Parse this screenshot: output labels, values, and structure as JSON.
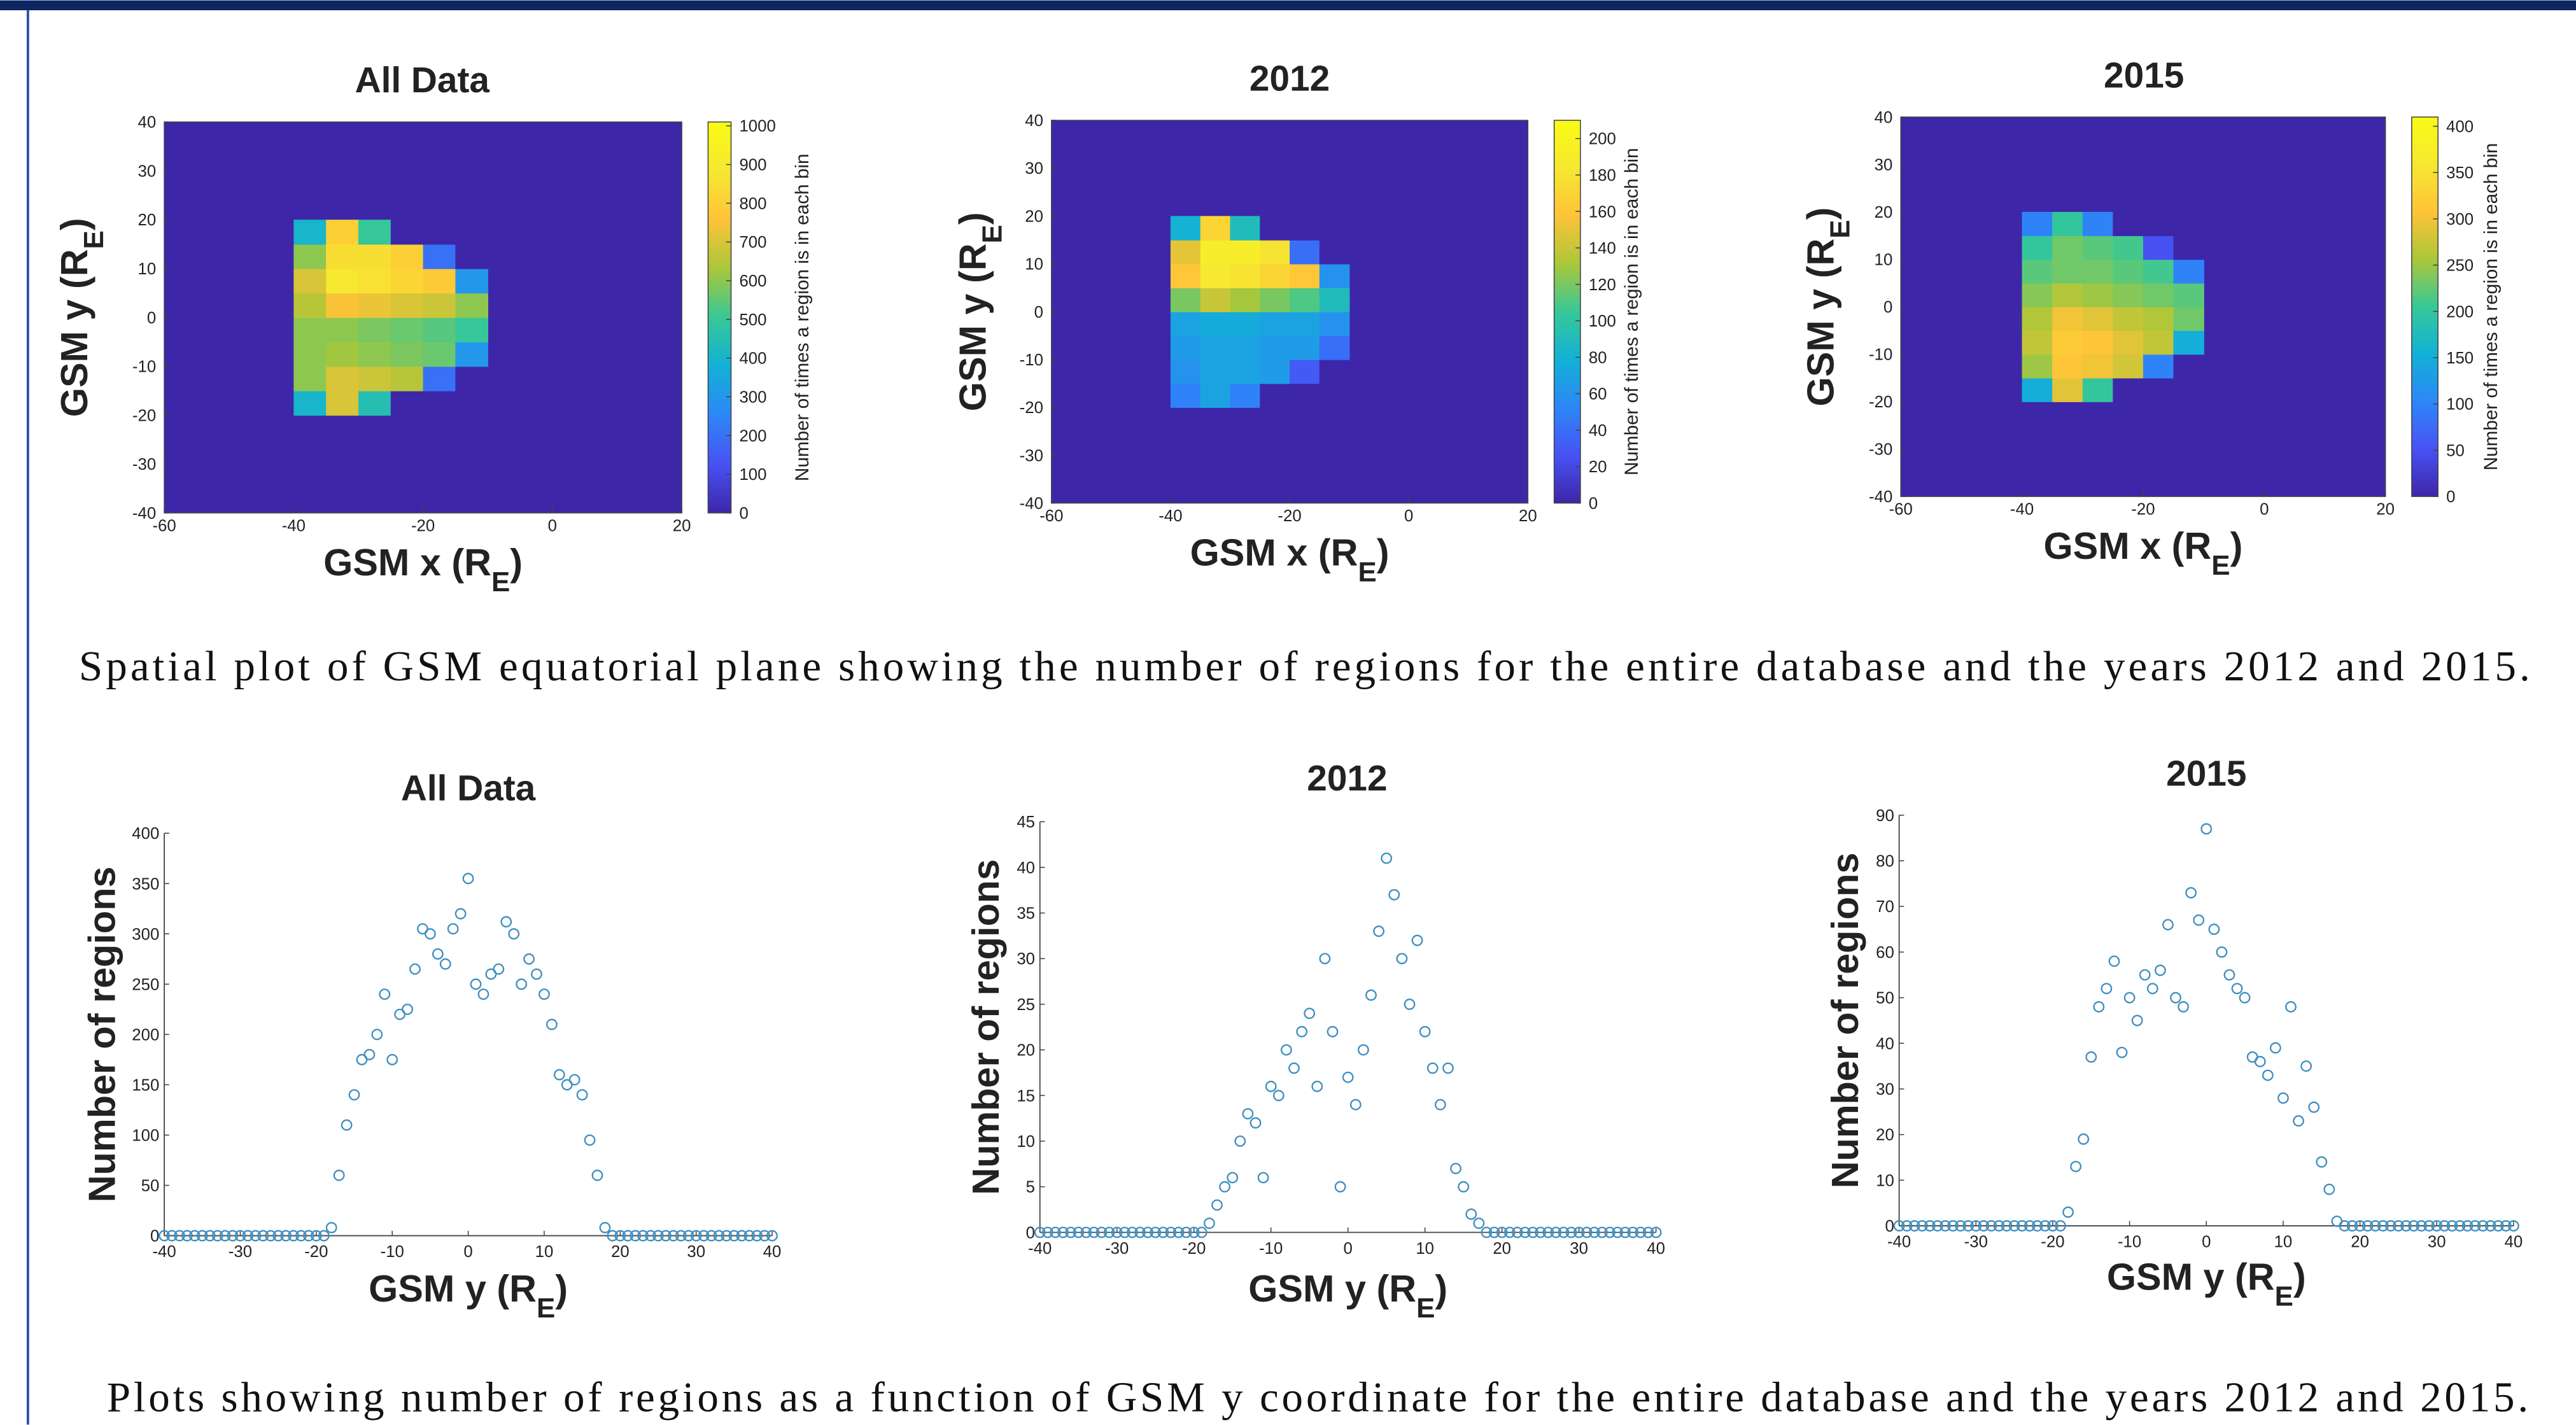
{
  "captions": [
    "Spatial plot of GSM equatorial plane showing the number of regions for the entire database  and the years 2012 and 2015.",
    "Plots showing number of regions as a function of GSM y coordinate for the entire database and the years 2012 and 2015."
  ],
  "colormap": [
    "#3e26a8",
    "#4752f4",
    "#2d87f7",
    "#12b1d6",
    "#37c897",
    "#abc739",
    "#fec338",
    "#f6e830",
    "#f9fb15"
  ],
  "chart_data": [
    {
      "type": "heatmap",
      "title": "All Data",
      "xlabel": [
        "GSM x (R",
        "E",
        ")"
      ],
      "ylabel": [
        "GSM y (R",
        "E",
        ")"
      ],
      "colorbar_label": "Number of times a region is in each bin",
      "xlim": [
        -60,
        20
      ],
      "ylim": [
        -40,
        40
      ],
      "xticks": [
        -60,
        -40,
        -20,
        0,
        20
      ],
      "yticks": [
        -40,
        -30,
        -20,
        -10,
        0,
        10,
        20,
        30,
        40
      ],
      "clim": [
        0,
        1010
      ],
      "cticks": [
        0,
        100,
        200,
        300,
        400,
        500,
        600,
        700,
        800,
        900,
        1000
      ],
      "x_bins": [
        -40,
        -35,
        -30,
        -25,
        -20,
        -15,
        -10
      ],
      "y_bins": [
        -20,
        -15,
        -10,
        -5,
        0,
        5,
        10,
        15,
        20
      ],
      "z": [
        [
          400,
          700,
          450,
          0,
          0,
          0
        ],
        [
          600,
          700,
          680,
          650,
          200,
          0
        ],
        [
          600,
          620,
          600,
          580,
          560,
          300
        ],
        [
          600,
          600,
          580,
          560,
          540,
          500
        ],
        [
          650,
          750,
          730,
          700,
          680,
          600
        ],
        [
          700,
          880,
          860,
          820,
          780,
          300
        ],
        [
          600,
          850,
          850,
          800,
          200,
          0
        ],
        [
          400,
          800,
          500,
          0,
          0,
          0
        ]
      ]
    },
    {
      "type": "heatmap",
      "title": "2012",
      "xlabel": [
        "GSM x (R",
        "E",
        ")"
      ],
      "ylabel": [
        "GSM y (R",
        "E",
        ")"
      ],
      "colorbar_label": "Number of times a region is in each bin",
      "xlim": [
        -60,
        20
      ],
      "ylim": [
        -40,
        40
      ],
      "xticks": [
        -60,
        -40,
        -20,
        0,
        20
      ],
      "yticks": [
        -40,
        -30,
        -20,
        -10,
        0,
        10,
        20,
        30,
        40
      ],
      "clim": [
        0,
        210
      ],
      "cticks": [
        0,
        20,
        40,
        60,
        80,
        100,
        120,
        140,
        160,
        180,
        200
      ],
      "x_bins": [
        -40,
        -35,
        -30,
        -25,
        -20,
        -15,
        -10
      ],
      "y_bins": [
        -20,
        -15,
        -10,
        -5,
        0,
        5,
        10,
        15,
        20
      ],
      "z": [
        [
          50,
          70,
          50,
          0,
          0,
          0
        ],
        [
          60,
          70,
          70,
          65,
          30,
          0
        ],
        [
          65,
          70,
          70,
          65,
          65,
          40
        ],
        [
          70,
          75,
          75,
          70,
          70,
          60
        ],
        [
          120,
          140,
          130,
          120,
          110,
          90
        ],
        [
          160,
          185,
          180,
          170,
          160,
          60
        ],
        [
          150,
          190,
          190,
          180,
          40,
          0
        ],
        [
          80,
          170,
          90,
          0,
          0,
          0
        ]
      ]
    },
    {
      "type": "heatmap",
      "title": "2015",
      "xlabel": [
        "GSM x (R",
        "E",
        ")"
      ],
      "ylabel": [
        "GSM y (R",
        "E",
        ")"
      ],
      "colorbar_label": "Number of times a region is in each bin",
      "xlim": [
        -60,
        20
      ],
      "ylim": [
        -40,
        40
      ],
      "xticks": [
        -60,
        -40,
        -20,
        0,
        20
      ],
      "yticks": [
        -40,
        -30,
        -20,
        -10,
        0,
        10,
        20,
        30,
        40
      ],
      "clim": [
        0,
        410
      ],
      "cticks": [
        0,
        50,
        100,
        150,
        200,
        250,
        300,
        350,
        400
      ],
      "x_bins": [
        -40,
        -35,
        -30,
        -25,
        -20,
        -15,
        -10
      ],
      "y_bins": [
        -20,
        -15,
        -10,
        -5,
        0,
        5,
        10,
        15,
        20
      ],
      "z": [
        [
          150,
          290,
          200,
          0,
          0,
          0
        ],
        [
          250,
          310,
          300,
          280,
          100,
          0
        ],
        [
          270,
          320,
          310,
          290,
          270,
          150
        ],
        [
          260,
          300,
          290,
          270,
          260,
          230
        ],
        [
          240,
          260,
          250,
          240,
          230,
          220
        ],
        [
          220,
          230,
          230,
          220,
          210,
          100
        ],
        [
          200,
          230,
          220,
          210,
          50,
          0
        ],
        [
          100,
          200,
          100,
          0,
          0,
          0
        ]
      ]
    },
    {
      "type": "scatter",
      "title": "All Data",
      "xlabel": [
        "GSM y (R",
        "E",
        ")"
      ],
      "ylabel": "Number of regions",
      "color": "#3f8fbf",
      "xlim": [
        -40,
        40
      ],
      "ylim": [
        0,
        400
      ],
      "xticks": [
        -40,
        -30,
        -20,
        -10,
        0,
        10,
        20,
        30,
        40
      ],
      "yticks": [
        0,
        50,
        100,
        150,
        200,
        250,
        300,
        350,
        400
      ],
      "x": [
        -40,
        -39,
        -38,
        -37,
        -36,
        -35,
        -34,
        -33,
        -32,
        -31,
        -30,
        -29,
        -28,
        -27,
        -26,
        -25,
        -24,
        -23,
        -22,
        -21,
        -20,
        -19,
        -18,
        -17,
        -16,
        -15,
        -14,
        -13,
        -12,
        -11,
        -10,
        -9,
        -8,
        -7,
        -6,
        -5,
        -4,
        -3,
        -2,
        -1,
        0,
        1,
        2,
        3,
        4,
        5,
        6,
        7,
        8,
        9,
        10,
        11,
        12,
        13,
        14,
        15,
        16,
        17,
        18,
        19,
        20,
        21,
        22,
        23,
        24,
        25,
        26,
        27,
        28,
        29,
        30,
        31,
        32,
        33,
        34,
        35,
        36,
        37,
        38,
        39,
        40
      ],
      "values": [
        0,
        0,
        0,
        0,
        0,
        0,
        0,
        0,
        0,
        0,
        0,
        0,
        0,
        0,
        0,
        0,
        0,
        0,
        0,
        0,
        0,
        0,
        8,
        60,
        110,
        140,
        175,
        180,
        200,
        240,
        175,
        220,
        225,
        265,
        305,
        300,
        280,
        270,
        305,
        320,
        355,
        250,
        240,
        260,
        265,
        312,
        300,
        250,
        275,
        260,
        240,
        210,
        160,
        150,
        155,
        140,
        95,
        60,
        8,
        0,
        0,
        0,
        0,
        0,
        0,
        0,
        0,
        0,
        0,
        0,
        0,
        0,
        0,
        0,
        0,
        0,
        0,
        0,
        0,
        0,
        0
      ]
    },
    {
      "type": "scatter",
      "title": "2012",
      "xlabel": [
        "GSM y (R",
        "E",
        ")"
      ],
      "ylabel": "Number of regions",
      "color": "#3f8fbf",
      "xlim": [
        -40,
        40
      ],
      "ylim": [
        0,
        45
      ],
      "xticks": [
        -40,
        -30,
        -20,
        -10,
        0,
        10,
        20,
        30,
        40
      ],
      "yticks": [
        0,
        5,
        10,
        15,
        20,
        25,
        30,
        35,
        40,
        45
      ],
      "x": [
        -40,
        -39,
        -38,
        -37,
        -36,
        -35,
        -34,
        -33,
        -32,
        -31,
        -30,
        -29,
        -28,
        -27,
        -26,
        -25,
        -24,
        -23,
        -22,
        -21,
        -20,
        -19,
        -18,
        -17,
        -16,
        -15,
        -14,
        -13,
        -12,
        -11,
        -10,
        -9,
        -8,
        -7,
        -6,
        -5,
        -4,
        -3,
        -2,
        -1,
        0,
        1,
        2,
        3,
        4,
        5,
        6,
        7,
        8,
        9,
        10,
        11,
        12,
        13,
        14,
        15,
        16,
        17,
        18,
        19,
        20,
        21,
        22,
        23,
        24,
        25,
        26,
        27,
        28,
        29,
        30,
        31,
        32,
        33,
        34,
        35,
        36,
        37,
        38,
        39,
        40
      ],
      "values": [
        0,
        0,
        0,
        0,
        0,
        0,
        0,
        0,
        0,
        0,
        0,
        0,
        0,
        0,
        0,
        0,
        0,
        0,
        0,
        0,
        0,
        0,
        1,
        3,
        5,
        6,
        10,
        13,
        12,
        6,
        16,
        15,
        20,
        18,
        22,
        24,
        16,
        30,
        22,
        5,
        17,
        14,
        20,
        26,
        33,
        41,
        37,
        30,
        25,
        32,
        22,
        18,
        14,
        18,
        7,
        5,
        2,
        1,
        0,
        0,
        0,
        0,
        0,
        0,
        0,
        0,
        0,
        0,
        0,
        0,
        0,
        0,
        0,
        0,
        0,
        0,
        0,
        0,
        0,
        0,
        0
      ]
    },
    {
      "type": "scatter",
      "title": "2015",
      "xlabel": [
        "GSM y (R",
        "E",
        ")"
      ],
      "ylabel": "Number of regions",
      "color": "#3f8fbf",
      "xlim": [
        -40,
        40
      ],
      "ylim": [
        0,
        90
      ],
      "xticks": [
        -40,
        -30,
        -20,
        -10,
        0,
        10,
        20,
        30,
        40
      ],
      "yticks": [
        0,
        10,
        20,
        30,
        40,
        50,
        60,
        70,
        80,
        90
      ],
      "x": [
        -40,
        -39,
        -38,
        -37,
        -36,
        -35,
        -34,
        -33,
        -32,
        -31,
        -30,
        -29,
        -28,
        -27,
        -26,
        -25,
        -24,
        -23,
        -22,
        -21,
        -20,
        -19,
        -18,
        -17,
        -16,
        -15,
        -14,
        -13,
        -12,
        -11,
        -10,
        -9,
        -8,
        -7,
        -6,
        -5,
        -4,
        -3,
        -2,
        -1,
        0,
        1,
        2,
        3,
        4,
        5,
        6,
        7,
        8,
        9,
        10,
        11,
        12,
        13,
        14,
        15,
        16,
        17,
        18,
        19,
        20,
        21,
        22,
        23,
        24,
        25,
        26,
        27,
        28,
        29,
        30,
        31,
        32,
        33,
        34,
        35,
        36,
        37,
        38,
        39,
        40
      ],
      "values": [
        0,
        0,
        0,
        0,
        0,
        0,
        0,
        0,
        0,
        0,
        0,
        0,
        0,
        0,
        0,
        0,
        0,
        0,
        0,
        0,
        0,
        0,
        3,
        13,
        19,
        37,
        48,
        52,
        58,
        38,
        50,
        45,
        55,
        52,
        56,
        66,
        50,
        48,
        73,
        67,
        87,
        65,
        60,
        55,
        52,
        50,
        37,
        36,
        33,
        39,
        28,
        48,
        23,
        35,
        26,
        14,
        8,
        1,
        0,
        0,
        0,
        0,
        0,
        0,
        0,
        0,
        0,
        0,
        0,
        0,
        0,
        0,
        0,
        0,
        0,
        0,
        0,
        0,
        0,
        0,
        0
      ]
    }
  ]
}
